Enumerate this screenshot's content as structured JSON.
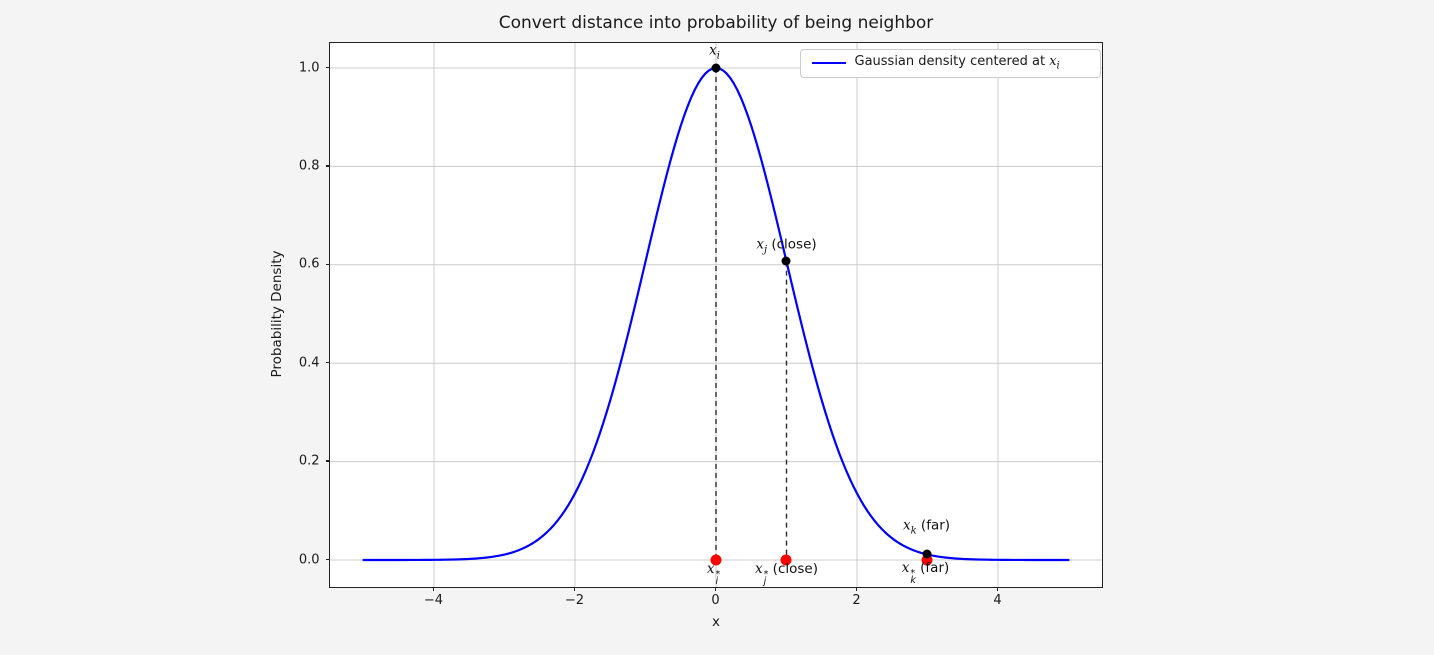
{
  "figure": {
    "title": "Convert distance into probability of being neighbor",
    "xlabel": "x",
    "ylabel": "Probability Density",
    "colors": {
      "background": "#f4f4f5",
      "axes_background": "#ffffff",
      "grid": "#cccccc",
      "spine": "#222222",
      "curve": "#0000ff",
      "black_marker": "#000000",
      "red_marker": "#ff0000",
      "dashed_line": "#2a2a2a",
      "text": "#1a1a1a"
    }
  },
  "legend": {
    "prefix": "Gaussian density centered at ",
    "math": {
      "base": "x",
      "sub": "i"
    },
    "line_color": "#0000ff"
  },
  "point_labels": {
    "xi": {
      "base": "x",
      "sub": "i",
      "suffix": ""
    },
    "xj": {
      "base": "x",
      "sub": "j",
      "suffix": " (close)"
    },
    "xk": {
      "base": "x",
      "sub": "k",
      "suffix": " (far)"
    },
    "xi_star": {
      "base": "x",
      "sub": "i",
      "sup": "*",
      "suffix": ""
    },
    "xj_star": {
      "base": "x",
      "sub": "j",
      "sup": "*",
      "suffix": " (close)"
    },
    "xk_star": {
      "base": "x",
      "sub": "k",
      "sup": "*",
      "suffix": " (far)"
    }
  },
  "chart_data": {
    "type": "line",
    "title": "Convert distance into probability of being neighbor",
    "xlabel": "x",
    "ylabel": "Probability Density",
    "xlim": [
      -5.48,
      5.48
    ],
    "ylim": [
      -0.055,
      1.051
    ],
    "x_ticks": [
      -4,
      -2,
      0,
      2,
      4
    ],
    "y_ticks": [
      0,
      0.2,
      0.4,
      0.6,
      0.8,
      1.0
    ],
    "x_tick_labels": [
      "−4",
      "−2",
      "0",
      "2",
      "4"
    ],
    "y_tick_labels": [
      "0.0",
      "0.2",
      "0.4",
      "0.6",
      "0.8",
      "1.0"
    ],
    "grid": true,
    "legend_position": "upper right",
    "series": [
      {
        "name": "Gaussian density centered at x_i",
        "type": "line",
        "color": "#0000ff",
        "curve": "gaussian",
        "mean": 0,
        "sigma": 1,
        "amplitude": 1.0,
        "x_range": [
          -5,
          5
        ]
      }
    ],
    "black_points": [
      {
        "x": 0,
        "y": 1.0,
        "label": "x_i"
      },
      {
        "x": 1,
        "y": 0.6065,
        "label": "x_j (close)"
      },
      {
        "x": 3,
        "y": 0.0111,
        "label": "x_k (far)"
      }
    ],
    "red_points": [
      {
        "x": 0,
        "y": 0.0,
        "label": "x_i*"
      },
      {
        "x": 1,
        "y": 0.0,
        "label": "x_j* (close)"
      },
      {
        "x": 3,
        "y": 0.0,
        "label": "x_k* (far)"
      }
    ],
    "dashed_drop_lines": [
      {
        "x": 0,
        "from_y": 1.0,
        "to_y": 0.0
      },
      {
        "x": 1,
        "from_y": 0.6065,
        "to_y": 0.0
      },
      {
        "x": 3,
        "from_y": 0.0111,
        "to_y": 0.0
      }
    ]
  }
}
